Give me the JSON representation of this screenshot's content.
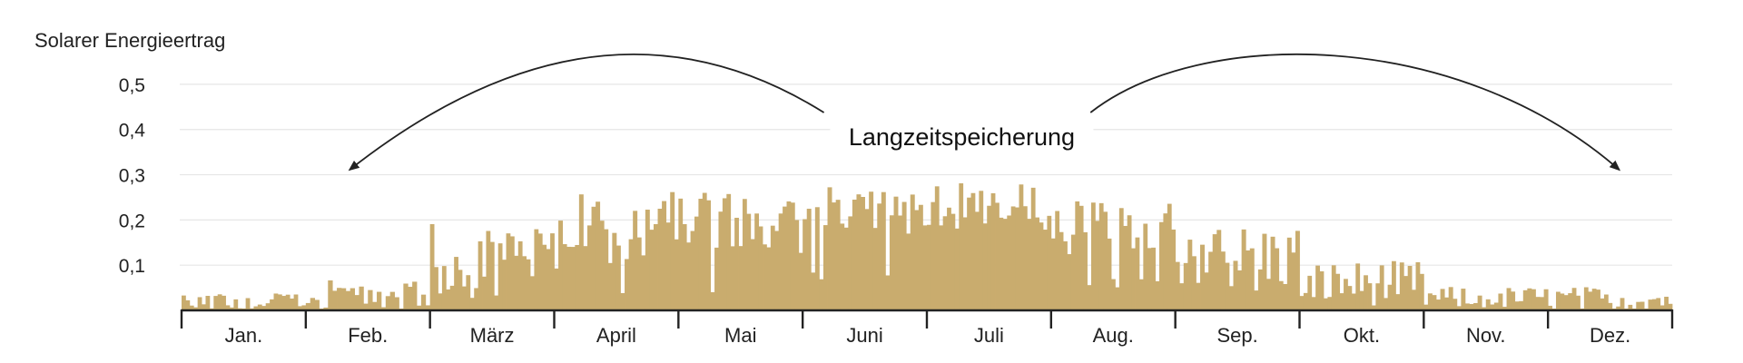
{
  "chart_data": {
    "type": "bar",
    "ylabel": "Solarer Energieertrag",
    "xlabel": "",
    "ylim": [
      0,
      0.55
    ],
    "yticks": [
      {
        "value": 0.1,
        "label": "0,1"
      },
      {
        "value": 0.2,
        "label": "0,2"
      },
      {
        "value": 0.3,
        "label": "0,3"
      },
      {
        "value": 0.4,
        "label": "0,4"
      },
      {
        "value": 0.5,
        "label": "0,5"
      }
    ],
    "grid": true,
    "colors": {
      "bar": "#c9ac6e",
      "grid": "#e6e6e6",
      "axis": "#222222",
      "arrow": "#222222"
    },
    "months": [
      {
        "label": "Jan.",
        "days": 31,
        "base": 0.018,
        "amp": 0.018
      },
      {
        "label": "Feb.",
        "days": 28,
        "base": 0.032,
        "amp": 0.035
      },
      {
        "label": "März",
        "days": 31,
        "base": 0.105,
        "amp": 0.085
      },
      {
        "label": "April",
        "days": 30,
        "base": 0.175,
        "amp": 0.085
      },
      {
        "label": "Mai",
        "days": 31,
        "base": 0.178,
        "amp": 0.075
      },
      {
        "label": "Juni",
        "days": 30,
        "base": 0.215,
        "amp": 0.06
      },
      {
        "label": "Juli",
        "days": 31,
        "base": 0.222,
        "amp": 0.055
      },
      {
        "label": "Aug.",
        "days": 31,
        "base": 0.175,
        "amp": 0.06
      },
      {
        "label": "Sep.",
        "days": 30,
        "base": 0.11,
        "amp": 0.075
      },
      {
        "label": "Okt.",
        "days": 31,
        "base": 0.055,
        "amp": 0.05
      },
      {
        "label": "Nov.",
        "days": 30,
        "base": 0.025,
        "amp": 0.025
      },
      {
        "label": "Dez.",
        "days": 31,
        "base": 0.022,
        "amp": 0.028
      }
    ],
    "annotation": {
      "text": "Langzeitspeicherung",
      "arrows": [
        {
          "from_month": "Juni",
          "to_month": "Feb."
        },
        {
          "from_month": "Aug.",
          "to_month": "Dez."
        }
      ]
    }
  }
}
